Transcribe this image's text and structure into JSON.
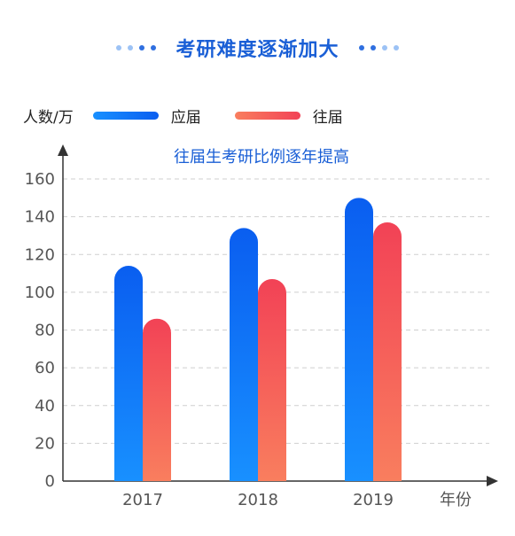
{
  "page_title": "考研难度逐渐加大",
  "colors": {
    "title": "#1a5fd6",
    "accent_blue_top": "#0a5ef0",
    "accent_blue_bottom": "#1890ff",
    "accent_red_top": "#f24256",
    "accent_red_bottom": "#f97e5e",
    "dots_dark": "#2f6fe0",
    "dots_light": "#9cc2f5"
  },
  "chart_data": {
    "type": "bar",
    "ylabel": "人数/万",
    "xlabel": "年份",
    "annotation": "往届生考研比例逐年提高",
    "categories": [
      "2017",
      "2018",
      "2019"
    ],
    "series": [
      {
        "name": "应届",
        "values": [
          114,
          134,
          150
        ]
      },
      {
        "name": "往届",
        "values": [
          86,
          107,
          137
        ]
      }
    ],
    "ylim": [
      0,
      160
    ],
    "yticks": [
      0,
      20,
      40,
      60,
      80,
      100,
      120,
      140,
      160
    ],
    "grid": true,
    "legend_position": "top-left"
  }
}
